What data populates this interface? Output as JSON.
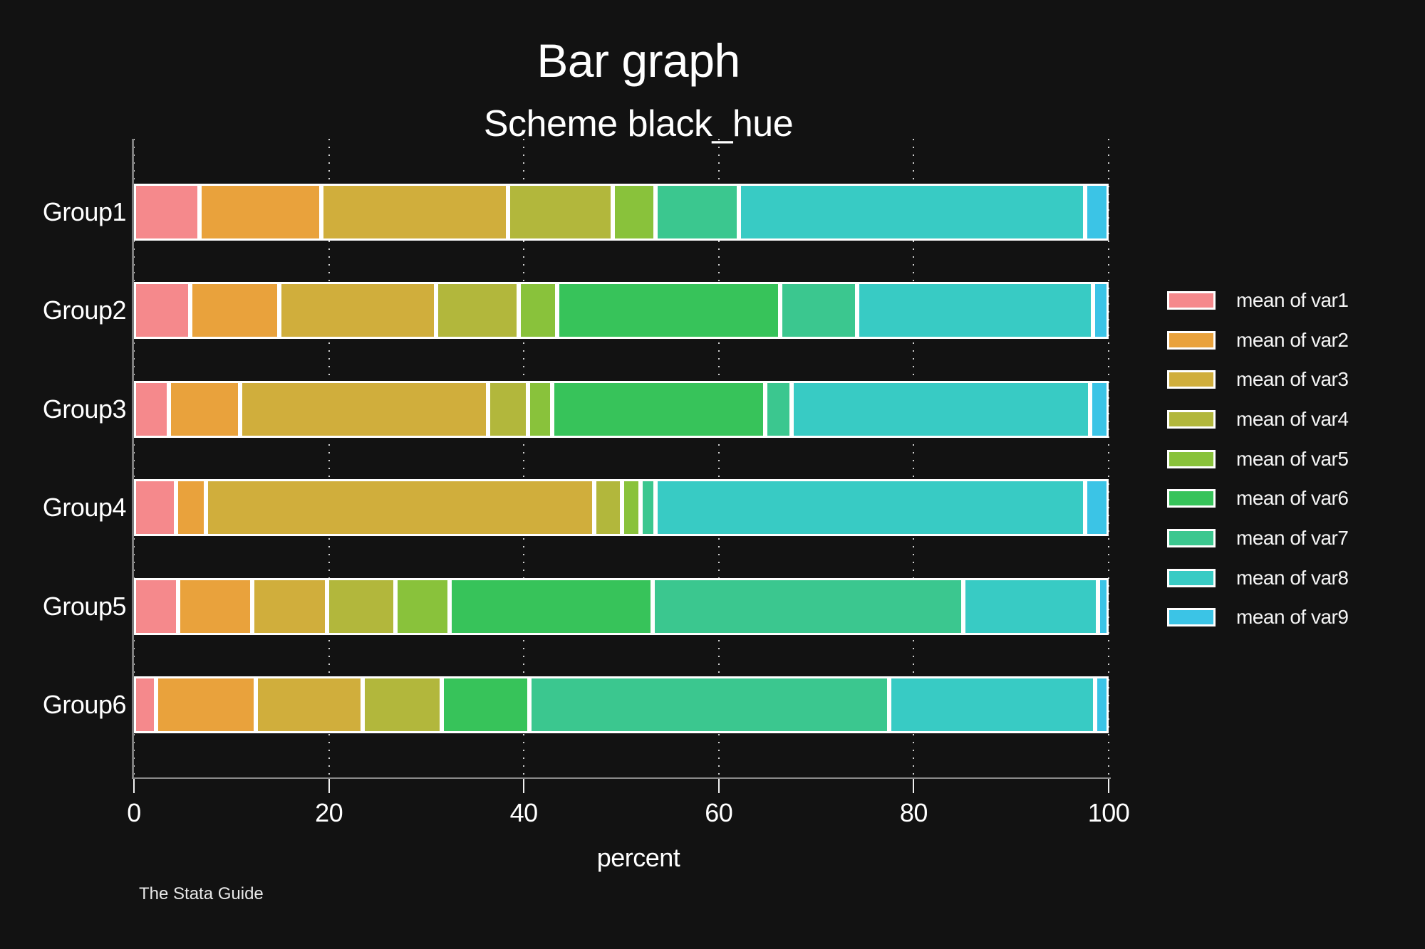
{
  "chart_data": {
    "type": "bar",
    "variant": "horizontal-stacked-percent",
    "title": "Bar graph",
    "subtitle": "Scheme black_hue",
    "xlabel": "percent",
    "note": "The Stata Guide",
    "xlim": [
      0,
      100
    ],
    "xticks": [
      0,
      20,
      40,
      60,
      80,
      100
    ],
    "grid": "dotted-vertical",
    "legend_position": "right",
    "background_color": "#121212",
    "categories": [
      "Group1",
      "Group2",
      "Group3",
      "Group4",
      "Group5",
      "Group6"
    ],
    "series": [
      {
        "name": "mean of var1",
        "color": "#f5898c",
        "values": [
          6.7,
          5.8,
          3.6,
          4.3,
          4.5,
          2.3
        ]
      },
      {
        "name": "mean of var2",
        "color": "#e9a23c",
        "values": [
          12.5,
          9.1,
          7.3,
          3.1,
          7.6,
          10.2
        ]
      },
      {
        "name": "mean of var3",
        "color": "#d0ae3c",
        "values": [
          19.2,
          16.1,
          25.4,
          39.8,
          7.7,
          11.0
        ]
      },
      {
        "name": "mean of var4",
        "color": "#b2b73c",
        "values": [
          10.7,
          8.5,
          4.1,
          2.9,
          7.0,
          8.1
        ]
      },
      {
        "name": "mean of var5",
        "color": "#89c23b",
        "values": [
          4.4,
          3.9,
          2.5,
          1.9,
          5.6,
          0
        ]
      },
      {
        "name": "mean of var6",
        "color": "#37c35a",
        "values": [
          0,
          22.9,
          21.9,
          0,
          20.8,
          9.0
        ]
      },
      {
        "name": "mean of var7",
        "color": "#3bc78f",
        "values": [
          8.6,
          7.9,
          2.7,
          1.5,
          31.9,
          36.9
        ]
      },
      {
        "name": "mean of var8",
        "color": "#38cbc4",
        "values": [
          35.5,
          24.2,
          30.6,
          44.1,
          13.8,
          21.1
        ]
      },
      {
        "name": "mean of var9",
        "color": "#3bc4e6",
        "values": [
          2.4,
          1.6,
          1.9,
          2.4,
          1.1,
          1.4
        ]
      }
    ]
  }
}
